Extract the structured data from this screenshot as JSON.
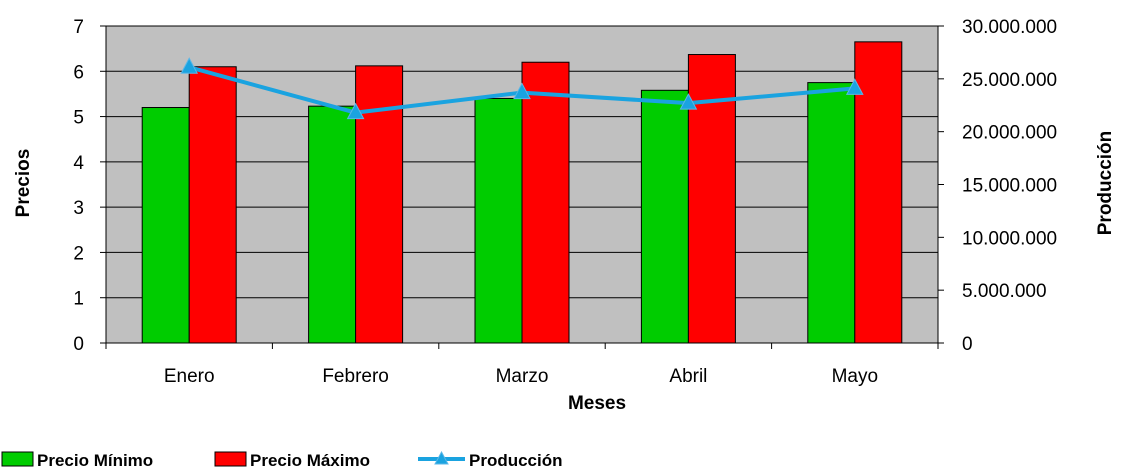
{
  "chart_data": {
    "type": "bar",
    "categories": [
      "Enero",
      "Febrero",
      "Marzo",
      "Abril",
      "Mayo"
    ],
    "series": [
      {
        "name": "Precio Mínimo",
        "type": "bar",
        "axis": "left",
        "color": "#00cc00",
        "values": [
          5.2,
          5.23,
          5.4,
          5.58,
          5.75
        ]
      },
      {
        "name": "Precio Máximo",
        "type": "bar",
        "axis": "left",
        "color": "#ff0000",
        "values": [
          6.1,
          6.12,
          6.2,
          6.37,
          6.65
        ]
      },
      {
        "name": "Producción",
        "type": "line",
        "axis": "right",
        "color": "#1aa3e0",
        "marker": "triangle",
        "values": [
          26100000,
          21800000,
          23700000,
          22700000,
          24100000
        ]
      }
    ],
    "xlabel": "Meses",
    "ylabel": "Precios",
    "y2label": "Producción",
    "ylim": [
      0,
      7
    ],
    "y2lim": [
      0,
      30000000
    ],
    "yticks": [
      "0",
      "1",
      "2",
      "3",
      "4",
      "5",
      "6",
      "7"
    ],
    "y2ticks": [
      "0",
      "5.000.000",
      "10.000.000",
      "15.000.000",
      "20.000.000",
      "25.000.000",
      "30.000.000"
    ],
    "grid": true,
    "plot_background": "#c0c0c0",
    "legend_position": "bottom-left"
  }
}
